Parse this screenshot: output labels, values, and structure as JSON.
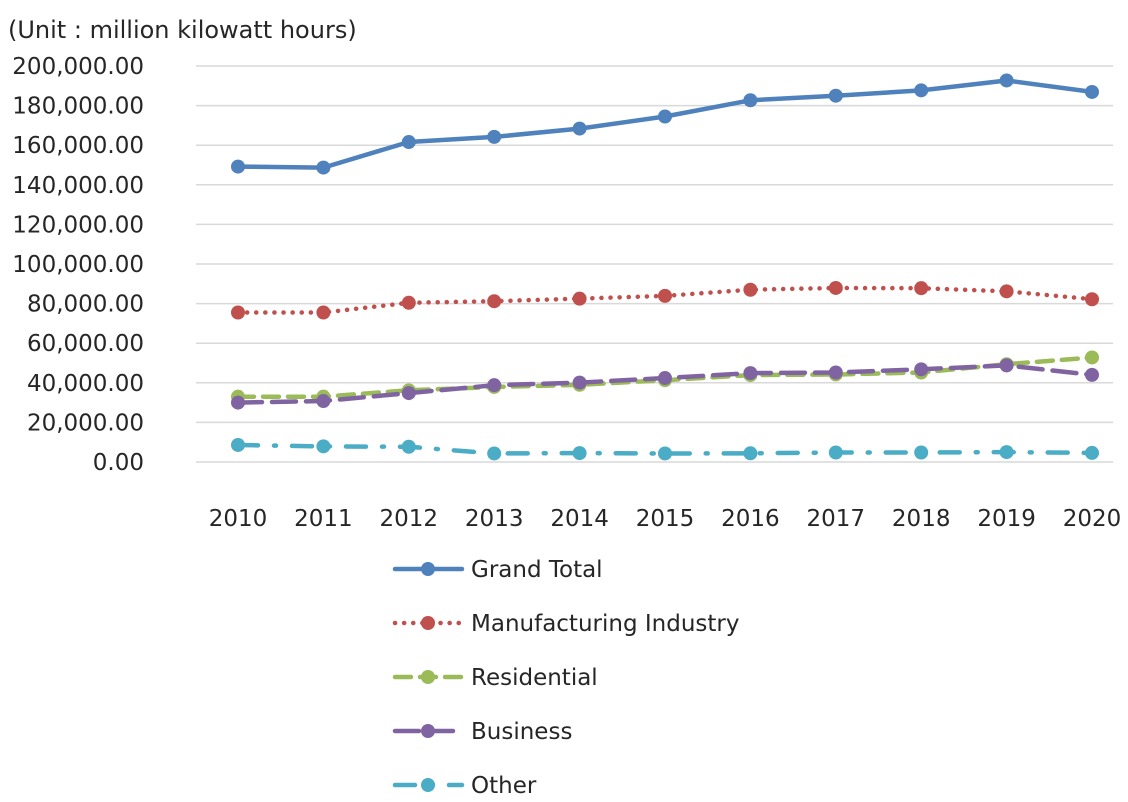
{
  "chart_data": {
    "type": "line",
    "unit_label": "(Unit : million kilowatt hours)",
    "categories": [
      "2010",
      "2011",
      "2012",
      "2013",
      "2014",
      "2015",
      "2016",
      "2017",
      "2018",
      "2019",
      "2020"
    ],
    "ylim": [
      0,
      200000
    ],
    "yticks": [
      0,
      20000,
      40000,
      60000,
      80000,
      100000,
      120000,
      140000,
      160000,
      180000,
      200000
    ],
    "ytick_labels": [
      "0.00",
      "20,000.00",
      "40,000.00",
      "60,000.00",
      "80,000.00",
      "100,000.00",
      "120,000.00",
      "140,000.00",
      "160,000.00",
      "180,000.00",
      "200,000.00"
    ],
    "grid": true,
    "legend_position": "bottom",
    "series": [
      {
        "name": "Grand Total",
        "color": "#4F81BD",
        "line_style": "solid",
        "values": [
          149200,
          148700,
          161600,
          164200,
          168400,
          174500,
          182700,
          185000,
          187700,
          192700,
          186900
        ]
      },
      {
        "name": "Manufacturing Industry",
        "color": "#C0504D",
        "line_style": "dotted",
        "values": [
          75500,
          75500,
          80400,
          81200,
          82500,
          83900,
          87000,
          87900,
          87800,
          86200,
          82200
        ]
      },
      {
        "name": "Residential",
        "color": "#9BBB59",
        "line_style": "dashed",
        "values": [
          33000,
          33000,
          36200,
          37900,
          39000,
          41300,
          43900,
          44200,
          45200,
          49400,
          52800
        ]
      },
      {
        "name": "Business",
        "color": "#8064A2",
        "line_style": "long-dash",
        "values": [
          30000,
          30800,
          34800,
          38800,
          40100,
          42400,
          44900,
          45200,
          46800,
          48800,
          44000
        ]
      },
      {
        "name": "Other",
        "color": "#4BACC6",
        "line_style": "dash-dot",
        "values": [
          8600,
          7900,
          7700,
          4300,
          4500,
          4300,
          4400,
          4800,
          4800,
          5000,
          4600
        ]
      }
    ]
  }
}
